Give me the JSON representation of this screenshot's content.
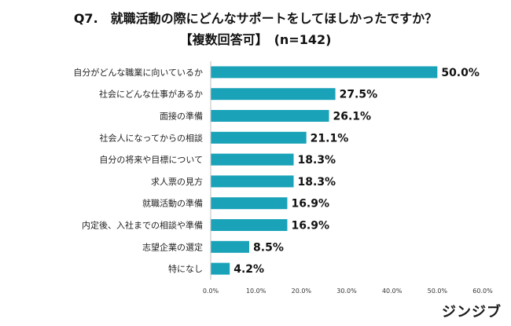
{
  "header": {
    "title": "Q7.　就職活動の際にどんなサポートをしてほしかったですか？",
    "subtitle": "【複数回答可】　(n=142)"
  },
  "brand": {
    "name": "ジンジブ"
  },
  "colors": {
    "bar": "#19a2b8",
    "axis": "#bfbfbf"
  },
  "chart_data": {
    "type": "bar",
    "orientation": "horizontal",
    "title": "Q7.　就職活動の際にどんなサポートをしてほしかったですか？",
    "subtitle": "【複数回答可】　(n=142)",
    "categories": [
      "自分がどんな職業に向いているか",
      "社会にどんな仕事があるか",
      "面接の準備",
      "社会人になってからの相談",
      "自分の将来や目標について",
      "求人票の見方",
      "就職活動の準備",
      "内定後、入社までの相談や準備",
      "志望企業の選定",
      "特になし"
    ],
    "values": [
      50.0,
      27.5,
      26.1,
      21.1,
      18.3,
      18.3,
      16.9,
      16.9,
      8.5,
      4.2
    ],
    "value_labels": [
      "50.0%",
      "27.5%",
      "26.1%",
      "21.1%",
      "18.3%",
      "18.3%",
      "16.9%",
      "16.9%",
      "8.5%",
      "4.2%"
    ],
    "xlim": [
      0,
      60
    ],
    "xticks": [
      0,
      10,
      20,
      30,
      40,
      50,
      60
    ],
    "xtick_labels": [
      "0.0%",
      "10.0%",
      "20.0%",
      "30.0%",
      "40.0%",
      "50.0%",
      "60.0%"
    ],
    "grid": false,
    "legend": "none"
  }
}
